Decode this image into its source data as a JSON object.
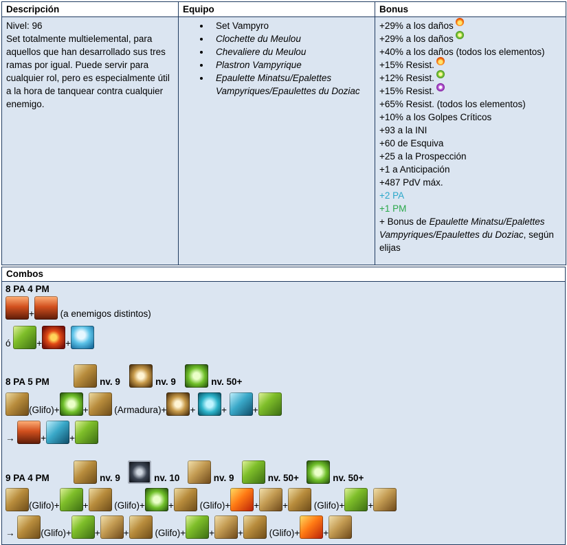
{
  "headers": {
    "descripcion": "Descripción",
    "equipo": "Equipo",
    "bonus": "Bonus",
    "combos": "Combos"
  },
  "descripcion": {
    "nivel": "Nivel: 96",
    "texto": "Set totalmente multielemental, para aquellos que han desarrollado sus tres ramas por igual. Puede servir para cualquier rol, pero es especialmente útil a la hora de tanquear contra cualquier enemigo."
  },
  "equipo": [
    "Set Vampyro",
    "Clochette du Meulou",
    "Chevaliere du Meulou",
    "Plastron Vampyrique",
    "Epaulette Minatsu/Epalettes Vampyriques/Epaulettes du Doziac"
  ],
  "bonus": {
    "b1": "+29% a los daños",
    "b2": "+29% a los daños",
    "b3": "+40% a los daños (todos los elementos)",
    "b4": "+15% Resist.",
    "b5": "+12% Resist.",
    "b6": "+15% Resist.",
    "b7": "+65% Resist. (todos los elementos)",
    "b8": "+10% a los Golpes Críticos",
    "b9": "+93 a la INI",
    "b10": "+60 de Esquiva",
    "b11": "+25 a la Prospección",
    "b12": "+1 a Anticipación",
    "b13": "+487 PdV máx.",
    "pa": "+2 PA",
    "pm": "+1 PM",
    "extra_pre": "+ Bonus de ",
    "extra_it": "Epaulette Minatsu/Epalettes Vampyriques/Epaulettes du Doziac",
    "extra_post": ", según elijas",
    "colors": {
      "pa": "#2aa7c9",
      "pm": "#2aa84a"
    }
  },
  "combos": {
    "c1": {
      "label": "8 PA  4 PM",
      "note": "(a enemigos distintos)",
      "or": "ó"
    },
    "c2": {
      "label": "8 PA  5 PM",
      "nv1": "nv. 9",
      "nv2": "nv. 9",
      "nv3": "nv. 50+",
      "glifo": "(Glifo)+",
      "armadura": "(Armadura)+"
    },
    "c3": {
      "label": "9 PA  4 PM",
      "nv1": "nv. 9",
      "nv2": "nv. 10",
      "nv3": "nv. 9",
      "nv4": "nv. 50+",
      "nv5": "nv. 50+",
      "glifo": "(Glifo)+"
    },
    "plus": "+",
    "arrow": "→"
  }
}
